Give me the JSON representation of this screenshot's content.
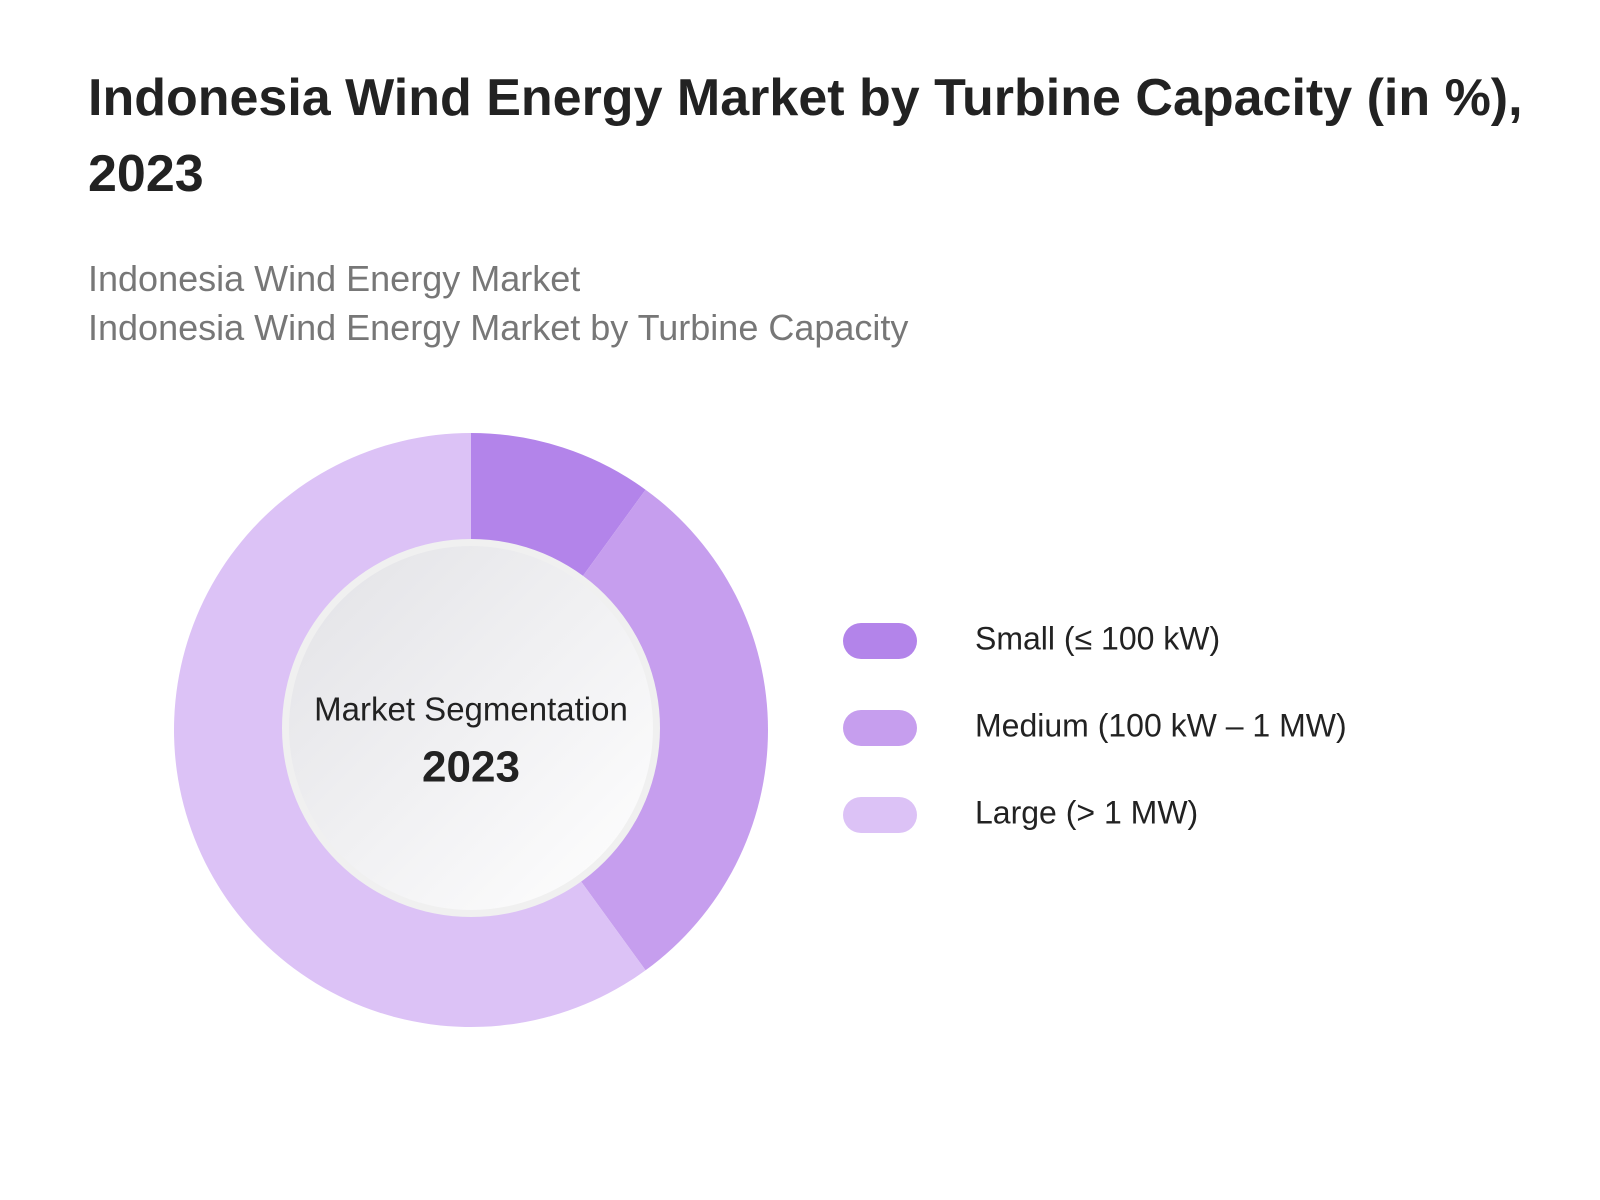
{
  "chart_data": {
    "type": "donut",
    "title": "Indonesia Wind Energy Market by Turbine Capacity (in %), 2023",
    "subtitles": [
      "Indonesia Wind Energy Market",
      "Indonesia Wind Energy Market by Turbine Capacity"
    ],
    "center_label": "Market Segmentation",
    "center_value": "2023",
    "categories": [
      "Small (≤ 100 kW)",
      "Medium (100 kW – 1 MW)",
      "Large (> 1 MW)"
    ],
    "values": [
      10,
      30,
      60
    ],
    "colors": [
      "#b384ea",
      "#c69eee",
      "#dcc2f6"
    ]
  }
}
